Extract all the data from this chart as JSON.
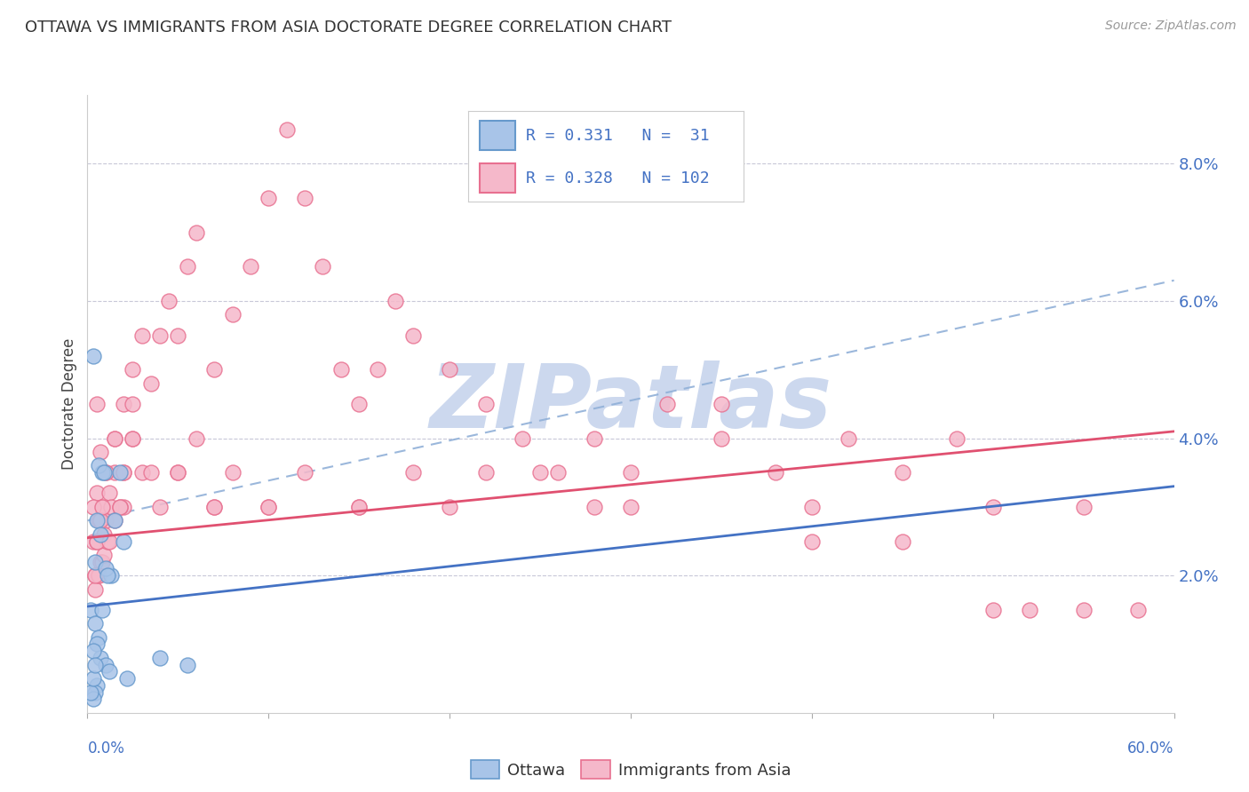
{
  "title": "OTTAWA VS IMMIGRANTS FROM ASIA DOCTORATE DEGREE CORRELATION CHART",
  "source": "Source: ZipAtlas.com",
  "ylabel": "Doctorate Degree",
  "legend_ottawa": "Ottawa",
  "legend_immigrants": "Immigrants from Asia",
  "r_ottawa": 0.331,
  "n_ottawa": 31,
  "r_immigrants": 0.328,
  "n_immigrants": 102,
  "color_ottawa_fill": "#a8c4e8",
  "color_ottawa_edge": "#6699cc",
  "color_immigrants_fill": "#f5b8ca",
  "color_immigrants_edge": "#e87090",
  "color_blue_line": "#4472c4",
  "color_pink_line": "#e05070",
  "color_dashed": "#90b0d8",
  "watermark": "ZIPatlas",
  "watermark_color": "#ccd8ee",
  "xmin": 0.0,
  "xmax": 60.0,
  "ymin": 0.0,
  "ymax": 9.0,
  "ytick_positions": [
    2.0,
    4.0,
    6.0,
    8.0
  ],
  "ytick_labels": [
    "2.0%",
    "4.0%",
    "6.0%",
    "8.0%"
  ],
  "grid_color": "#c8c8d8",
  "background_color": "#ffffff",
  "ottawa_x": [
    0.3,
    0.5,
    0.8,
    1.3,
    2.0,
    0.4,
    0.7,
    1.0,
    1.5,
    0.6,
    0.9,
    1.8,
    0.2,
    0.4,
    0.6,
    0.5,
    0.7,
    1.0,
    1.2,
    2.2,
    0.3,
    0.5,
    0.4,
    0.3,
    4.0,
    5.5,
    0.2,
    0.3,
    0.4,
    0.8,
    1.1
  ],
  "ottawa_y": [
    5.2,
    2.8,
    3.5,
    2.0,
    2.5,
    2.2,
    2.6,
    2.1,
    2.8,
    3.6,
    3.5,
    3.5,
    1.5,
    1.3,
    1.1,
    1.0,
    0.8,
    0.7,
    0.6,
    0.5,
    0.9,
    0.4,
    0.3,
    0.2,
    0.8,
    0.7,
    0.3,
    0.5,
    0.7,
    1.5,
    2.0
  ],
  "immigrants_x": [
    0.5,
    0.8,
    1.0,
    1.5,
    2.0,
    0.3,
    0.6,
    0.9,
    1.2,
    0.4,
    0.7,
    1.3,
    0.5,
    0.6,
    0.8,
    0.4,
    0.6,
    0.9,
    1.1,
    1.5,
    1.8,
    2.0,
    2.5,
    0.5,
    0.7,
    1.0,
    1.5,
    2.0,
    2.5,
    3.0,
    3.5,
    4.0,
    4.5,
    5.0,
    5.5,
    6.0,
    7.0,
    8.0,
    9.0,
    10.0,
    11.0,
    12.0,
    13.0,
    14.0,
    15.0,
    16.0,
    17.0,
    18.0,
    20.0,
    22.0,
    24.0,
    26.0,
    28.0,
    30.0,
    32.0,
    35.0,
    38.0,
    40.0,
    42.0,
    45.0,
    48.0,
    50.0,
    52.0,
    55.0,
    58.0,
    0.3,
    0.5,
    0.7,
    1.0,
    1.5,
    2.0,
    2.5,
    3.0,
    4.0,
    5.0,
    6.0,
    7.0,
    8.0,
    10.0,
    12.0,
    15.0,
    18.0,
    20.0,
    22.0,
    25.0,
    28.0,
    30.0,
    35.0,
    40.0,
    45.0,
    50.0,
    55.0,
    0.4,
    0.8,
    1.2,
    1.8,
    2.5,
    3.5,
    5.0,
    7.0,
    10.0,
    15.0
  ],
  "immigrants_y": [
    3.2,
    3.0,
    2.8,
    3.5,
    3.0,
    2.5,
    2.8,
    2.6,
    3.2,
    2.0,
    2.2,
    3.0,
    2.5,
    2.0,
    2.2,
    1.8,
    2.0,
    2.3,
    2.5,
    2.8,
    3.0,
    3.5,
    4.0,
    4.5,
    3.8,
    3.5,
    4.0,
    4.5,
    5.0,
    5.5,
    4.8,
    5.5,
    6.0,
    5.5,
    6.5,
    7.0,
    5.0,
    5.8,
    6.5,
    7.5,
    8.5,
    7.5,
    6.5,
    5.0,
    4.5,
    5.0,
    6.0,
    5.5,
    5.0,
    4.5,
    4.0,
    3.5,
    4.0,
    3.5,
    4.5,
    4.0,
    3.5,
    3.0,
    4.0,
    3.5,
    4.0,
    3.0,
    1.5,
    3.0,
    1.5,
    3.0,
    2.5,
    2.8,
    3.5,
    4.0,
    3.5,
    4.5,
    3.5,
    3.0,
    3.5,
    4.0,
    3.0,
    3.5,
    3.0,
    3.5,
    3.0,
    3.5,
    3.0,
    3.5,
    3.5,
    3.0,
    3.0,
    4.5,
    2.5,
    2.5,
    1.5,
    1.5,
    2.0,
    3.0,
    2.5,
    3.0,
    4.0,
    3.5,
    3.5,
    3.0,
    3.0,
    3.0
  ],
  "blue_line_x0": 0.0,
  "blue_line_y0": 1.55,
  "blue_line_x1": 60.0,
  "blue_line_y1": 3.3,
  "pink_line_x0": 0.0,
  "pink_line_y0": 2.55,
  "pink_line_x1": 60.0,
  "pink_line_y1": 4.1,
  "dashed_line_x0": 0.0,
  "dashed_line_y0": 2.8,
  "dashed_line_x1": 60.0,
  "dashed_line_y1": 6.3
}
